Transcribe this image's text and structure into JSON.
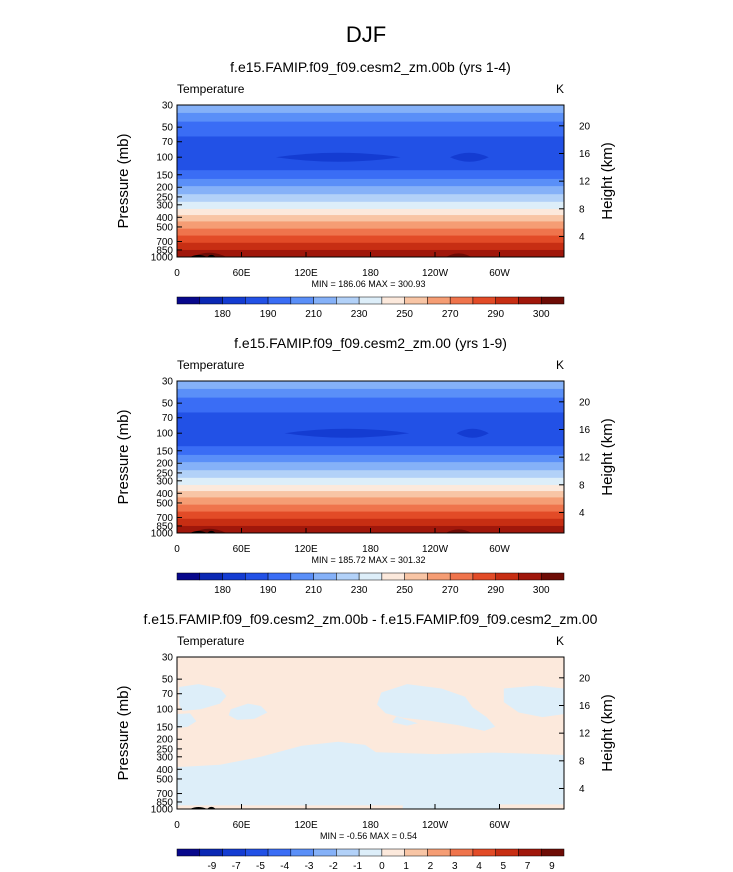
{
  "figure_title": "DJF",
  "palette_temp": [
    "#08088c",
    "#0b28b4",
    "#143cd2",
    "#2251e6",
    "#3a6df5",
    "#5a8ff8",
    "#85b1f8",
    "#b2d1f8",
    "#ddeef9",
    "#fce9dc",
    "#f8c5a5",
    "#f59d74",
    "#ef744c",
    "#e24b27",
    "#c72e13",
    "#a0170b",
    "#6e0c06"
  ],
  "palette_diff": [
    "#08088c",
    "#0b28b4",
    "#143cd2",
    "#2251e6",
    "#3a6df5",
    "#5a8ff8",
    "#85b1f8",
    "#b2d1f8",
    "#ddeef9",
    "#fce9dc",
    "#f8c5a5",
    "#f59d74",
    "#ef744c",
    "#e24b27",
    "#c72e13",
    "#a0170b",
    "#6e0c06"
  ],
  "chart_data": [
    {
      "type": "heatmap",
      "title": "f.e15.FAMIP.f09_f09.cesm2_zm.00b (yrs 1-4)",
      "left_label": "Temperature",
      "right_label": "K",
      "ylabel": "Pressure (mb)",
      "ylabel_right": "Height (km)",
      "x_ticks": [
        "0",
        "60E",
        "120E",
        "180",
        "120W",
        "60W"
      ],
      "x_tick_values": [
        0,
        60,
        120,
        180,
        240,
        300
      ],
      "xlim": [
        0,
        360
      ],
      "y_ticks": [
        30,
        50,
        70,
        100,
        150,
        200,
        250,
        300,
        400,
        500,
        700,
        850,
        1000
      ],
      "ylim": [
        30,
        1000
      ],
      "y_scale": "log",
      "height_ticks": [
        20,
        16,
        12,
        8,
        4
      ],
      "stats": "MIN = 186.06  MAX = 300.93",
      "min": 186.06,
      "max": 300.93,
      "colorbar_labels": [
        "180",
        "190",
        "210",
        "230",
        "250",
        "270",
        "290",
        "300"
      ],
      "colorbar_bins": 17,
      "levels": [
        {
          "p_top": 30,
          "p_bottom": 36,
          "bin": 6
        },
        {
          "p_top": 36,
          "p_bottom": 44,
          "bin": 5
        },
        {
          "p_top": 44,
          "p_bottom": 62,
          "bin": 4
        },
        {
          "p_top": 62,
          "p_bottom": 135,
          "bin": 3
        },
        {
          "p_top": 135,
          "p_bottom": 165,
          "bin": 4
        },
        {
          "p_top": 165,
          "p_bottom": 195,
          "bin": 5
        },
        {
          "p_top": 195,
          "p_bottom": 235,
          "bin": 6
        },
        {
          "p_top": 235,
          "p_bottom": 280,
          "bin": 7
        },
        {
          "p_top": 280,
          "p_bottom": 330,
          "bin": 8
        },
        {
          "p_top": 330,
          "p_bottom": 380,
          "bin": 9
        },
        {
          "p_top": 380,
          "p_bottom": 440,
          "bin": 10
        },
        {
          "p_top": 440,
          "p_bottom": 520,
          "bin": 11
        },
        {
          "p_top": 520,
          "p_bottom": 610,
          "bin": 12
        },
        {
          "p_top": 610,
          "p_bottom": 720,
          "bin": 13
        },
        {
          "p_top": 720,
          "p_bottom": 850,
          "bin": 14
        },
        {
          "p_top": 850,
          "p_bottom": 1000,
          "bin": 15
        }
      ],
      "cold_cores": [
        {
          "lon": 150,
          "lon_halfwidth": 58,
          "p": 100,
          "bin": 2
        },
        {
          "lon": 272,
          "lon_halfwidth": 18,
          "p": 100,
          "bin": 2
        }
      ],
      "hot_spots": [
        {
          "lon": 30,
          "lon_halfwidth": 16,
          "p_top": 900,
          "bin": 16
        },
        {
          "lon": 262,
          "lon_halfwidth": 12,
          "p_top": 930,
          "bin": 16
        }
      ],
      "terrain": [
        {
          "lon": 20,
          "width": 16,
          "p_top": 975
        },
        {
          "lon": 32,
          "width": 8,
          "p_top": 970
        }
      ]
    },
    {
      "type": "heatmap",
      "title": "f.e15.FAMIP.f09_f09.cesm2_zm.00 (yrs 1-9)",
      "left_label": "Temperature",
      "right_label": "K",
      "ylabel": "Pressure (mb)",
      "ylabel_right": "Height (km)",
      "x_ticks": [
        "0",
        "60E",
        "120E",
        "180",
        "120W",
        "60W"
      ],
      "x_tick_values": [
        0,
        60,
        120,
        180,
        240,
        300
      ],
      "xlim": [
        0,
        360
      ],
      "y_ticks": [
        30,
        50,
        70,
        100,
        150,
        200,
        250,
        300,
        400,
        500,
        700,
        850,
        1000
      ],
      "ylim": [
        30,
        1000
      ],
      "y_scale": "log",
      "height_ticks": [
        20,
        16,
        12,
        8,
        4
      ],
      "stats": "MIN = 185.72  MAX = 301.32",
      "min": 185.72,
      "max": 301.32,
      "colorbar_labels": [
        "180",
        "190",
        "210",
        "230",
        "250",
        "270",
        "290",
        "300"
      ],
      "colorbar_bins": 17,
      "levels": [
        {
          "p_top": 30,
          "p_bottom": 36,
          "bin": 6
        },
        {
          "p_top": 36,
          "p_bottom": 44,
          "bin": 5
        },
        {
          "p_top": 44,
          "p_bottom": 62,
          "bin": 4
        },
        {
          "p_top": 62,
          "p_bottom": 135,
          "bin": 3
        },
        {
          "p_top": 135,
          "p_bottom": 165,
          "bin": 4
        },
        {
          "p_top": 165,
          "p_bottom": 195,
          "bin": 5
        },
        {
          "p_top": 195,
          "p_bottom": 235,
          "bin": 6
        },
        {
          "p_top": 235,
          "p_bottom": 280,
          "bin": 7
        },
        {
          "p_top": 280,
          "p_bottom": 330,
          "bin": 8
        },
        {
          "p_top": 330,
          "p_bottom": 380,
          "bin": 9
        },
        {
          "p_top": 380,
          "p_bottom": 440,
          "bin": 10
        },
        {
          "p_top": 440,
          "p_bottom": 520,
          "bin": 11
        },
        {
          "p_top": 520,
          "p_bottom": 610,
          "bin": 12
        },
        {
          "p_top": 610,
          "p_bottom": 720,
          "bin": 13
        },
        {
          "p_top": 720,
          "p_bottom": 850,
          "bin": 14
        },
        {
          "p_top": 850,
          "p_bottom": 1000,
          "bin": 15
        }
      ],
      "cold_cores": [
        {
          "lon": 158,
          "lon_halfwidth": 58,
          "p": 100,
          "bin": 2
        },
        {
          "lon": 275,
          "lon_halfwidth": 15,
          "p": 100,
          "bin": 2
        }
      ],
      "hot_spots": [
        {
          "lon": 30,
          "lon_halfwidth": 16,
          "p_top": 900,
          "bin": 16
        },
        {
          "lon": 262,
          "lon_halfwidth": 12,
          "p_top": 930,
          "bin": 16
        }
      ],
      "terrain": [
        {
          "lon": 20,
          "width": 16,
          "p_top": 975
        },
        {
          "lon": 32,
          "width": 8,
          "p_top": 970
        }
      ]
    },
    {
      "type": "heatmap",
      "title": "f.e15.FAMIP.f09_f09.cesm2_zm.00b - f.e15.FAMIP.f09_f09.cesm2_zm.00",
      "left_label": "Temperature",
      "right_label": "K",
      "ylabel": "Pressure (mb)",
      "ylabel_right": "Height (km)",
      "x_ticks": [
        "0",
        "60E",
        "120E",
        "180",
        "120W",
        "60W"
      ],
      "x_tick_values": [
        0,
        60,
        120,
        180,
        240,
        300
      ],
      "xlim": [
        0,
        360
      ],
      "y_ticks": [
        30,
        50,
        70,
        100,
        150,
        200,
        250,
        300,
        400,
        500,
        700,
        850,
        1000
      ],
      "ylim": [
        30,
        1000
      ],
      "y_scale": "log",
      "height_ticks": [
        20,
        16,
        12,
        8,
        4
      ],
      "stats": "MIN = -0.56  MAX =  0.54",
      "min": -0.56,
      "max": 0.54,
      "colorbar_labels": [
        "-9",
        "-7",
        "-5",
        "-4",
        "-3",
        "-2",
        "-1",
        "0",
        "1",
        "2",
        "3",
        "4",
        "5",
        "7",
        "9"
      ],
      "colorbar_bins": 17,
      "background_bin": 9,
      "negative_bin": 8,
      "negative_regions": [
        {
          "points": [
            [
              2,
              60
            ],
            [
              20,
              56
            ],
            [
              40,
              62
            ],
            [
              46,
              74
            ],
            [
              40,
              88
            ],
            [
              22,
              100
            ],
            [
              5,
              104
            ],
            [
              2,
              90
            ]
          ]
        },
        {
          "points": [
            [
              0,
              112
            ],
            [
              12,
              110
            ],
            [
              18,
              132
            ],
            [
              10,
              150
            ],
            [
              0,
              155
            ]
          ]
        },
        {
          "points": [
            [
              50,
              100
            ],
            [
              66,
              88
            ],
            [
              78,
              93
            ],
            [
              84,
              108
            ],
            [
              72,
              125
            ],
            [
              56,
              128
            ],
            [
              48,
              115
            ]
          ]
        },
        {
          "points": [
            [
              0,
              380
            ],
            [
              40,
              360
            ],
            [
              78,
              300
            ],
            [
              116,
              232
            ],
            [
              150,
              212
            ],
            [
              175,
              228
            ],
            [
              185,
              270
            ],
            [
              240,
              282
            ],
            [
              295,
              272
            ],
            [
              330,
              280
            ],
            [
              360,
              288
            ],
            [
              360,
              1000
            ],
            [
              0,
              1000
            ]
          ]
        },
        {
          "points": [
            [
              190,
              68
            ],
            [
              214,
              56
            ],
            [
              246,
              62
            ],
            [
              268,
              75
            ],
            [
              275,
              96
            ],
            [
              288,
              120
            ],
            [
              296,
              150
            ],
            [
              286,
              165
            ],
            [
              262,
              145
            ],
            [
              234,
              130
            ],
            [
              210,
              122
            ],
            [
              194,
              110
            ],
            [
              186,
              90
            ]
          ]
        },
        {
          "points": [
            [
              304,
              62
            ],
            [
              334,
              58
            ],
            [
              360,
              62
            ],
            [
              360,
              112
            ],
            [
              340,
              120
            ],
            [
              318,
              108
            ],
            [
              304,
              85
            ]
          ]
        },
        {
          "points": [
            [
              204,
              118
            ],
            [
              224,
              138
            ],
            [
              214,
              146
            ],
            [
              200,
              135
            ]
          ]
        }
      ],
      "positive_strips": [
        {
          "lon_start": 0,
          "lon_end": 210,
          "p_top": 920,
          "p_bottom": 1000
        },
        {
          "lon_start": 300,
          "lon_end": 360,
          "p_top": 900,
          "p_bottom": 1000
        }
      ],
      "terrain": [
        {
          "lon": 20,
          "width": 16,
          "p_top": 975
        },
        {
          "lon": 32,
          "width": 8,
          "p_top": 970
        }
      ]
    }
  ]
}
